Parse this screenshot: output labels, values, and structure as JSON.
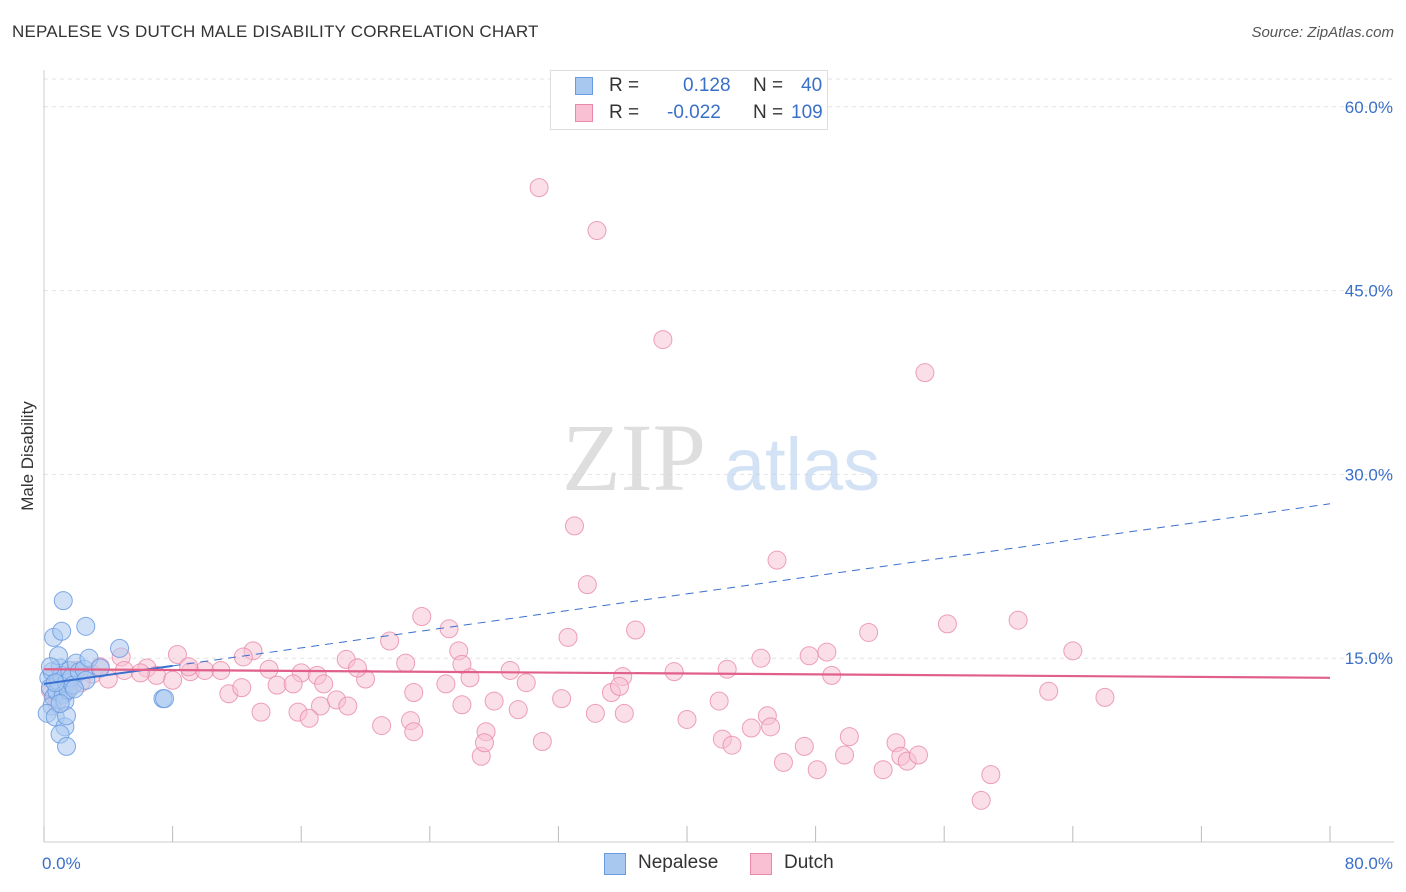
{
  "header": {
    "title": "NEPALESE VS DUTCH MALE DISABILITY CORRELATION CHART",
    "source": "Source: ZipAtlas.com"
  },
  "watermark": {
    "zip": "ZIP",
    "atlas": "atlas"
  },
  "legend": {
    "rows": [
      {
        "r_label": "R =",
        "r_value": "0.128",
        "n_label": "N =",
        "n_value": "40",
        "color": "#a9c8f0",
        "border": "#6a9be0"
      },
      {
        "r_label": "R =",
        "r_value": "-0.022",
        "n_label": "N =",
        "n_value": "109",
        "color": "#f8c0d2",
        "border": "#e889a8"
      }
    ]
  },
  "chart_data": {
    "type": "scatter",
    "title": "NEPALESE VS DUTCH MALE DISABILITY CORRELATION CHART",
    "xlabel": "",
    "ylabel": "Male Disability",
    "xlim": [
      0,
      80
    ],
    "ylim": [
      0,
      63
    ],
    "x_tick_labels": [
      "0.0%",
      "80.0%"
    ],
    "y_ticks": [
      15,
      30,
      45,
      60
    ],
    "y_tick_labels": [
      "15.0%",
      "30.0%",
      "45.0%",
      "60.0%"
    ],
    "grid": true,
    "colors": {
      "nepalese": "#6a9be0",
      "nepalese_fill": "#a9c8f0",
      "dutch": "#e889a8",
      "dutch_fill": "#f8c0d2",
      "nepalese_line": "#3a70d0",
      "dutch_line": "#e0608a",
      "tick_text": "#3a6fc8"
    },
    "series": [
      {
        "name": "Nepalese",
        "trend": {
          "x0": 0,
          "y0": 12.9,
          "x1": 80,
          "y1": 27.6,
          "solid_until": 8
        },
        "points": [
          [
            0.3,
            13.4
          ],
          [
            0.5,
            13.9
          ],
          [
            0.4,
            12.6
          ],
          [
            0.6,
            11.8
          ],
          [
            0.5,
            11.1
          ],
          [
            0.2,
            10.5
          ],
          [
            0.7,
            10.2
          ],
          [
            0.8,
            12.3
          ],
          [
            0.9,
            13.1
          ],
          [
            1.0,
            14.2
          ],
          [
            1.1,
            13.6
          ],
          [
            1.2,
            12.0
          ],
          [
            1.3,
            11.5
          ],
          [
            0.9,
            15.2
          ],
          [
            1.4,
            13.0
          ],
          [
            1.5,
            12.4
          ],
          [
            1.6,
            14.0
          ],
          [
            1.7,
            13.4
          ],
          [
            1.8,
            12.8
          ],
          [
            2.0,
            14.6
          ],
          [
            2.2,
            13.9
          ],
          [
            2.5,
            14.1
          ],
          [
            2.8,
            15.0
          ],
          [
            2.6,
            13.2
          ],
          [
            0.6,
            16.7
          ],
          [
            1.1,
            17.2
          ],
          [
            1.2,
            19.7
          ],
          [
            2.6,
            17.6
          ],
          [
            1.3,
            9.4
          ],
          [
            1.4,
            10.3
          ],
          [
            1.0,
            8.8
          ],
          [
            1.4,
            7.8
          ],
          [
            4.7,
            15.8
          ],
          [
            3.5,
            14.2
          ],
          [
            7.4,
            11.7
          ],
          [
            7.5,
            11.7
          ],
          [
            0.4,
            14.3
          ],
          [
            1.0,
            11.3
          ],
          [
            0.7,
            13.0
          ],
          [
            1.9,
            12.5
          ]
        ]
      },
      {
        "name": "Dutch",
        "trend": {
          "x0": 0,
          "y0": 14.1,
          "x1": 80,
          "y1": 13.4
        },
        "points": [
          [
            30.8,
            53.4
          ],
          [
            34.4,
            49.9
          ],
          [
            38.5,
            41.0
          ],
          [
            54.8,
            38.3
          ],
          [
            33.0,
            25.8
          ],
          [
            45.6,
            23.0
          ],
          [
            33.8,
            21.0
          ],
          [
            23.5,
            18.4
          ],
          [
            25.2,
            17.4
          ],
          [
            36.8,
            17.3
          ],
          [
            51.3,
            17.1
          ],
          [
            56.2,
            17.8
          ],
          [
            60.6,
            18.1
          ],
          [
            21.5,
            16.4
          ],
          [
            32.6,
            16.7
          ],
          [
            44.6,
            15.0
          ],
          [
            47.6,
            15.2
          ],
          [
            48.7,
            15.5
          ],
          [
            64.0,
            15.6
          ],
          [
            25.8,
            15.6
          ],
          [
            13.0,
            15.6
          ],
          [
            12.4,
            15.1
          ],
          [
            8.3,
            15.3
          ],
          [
            4.8,
            15.1
          ],
          [
            18.8,
            14.9
          ],
          [
            22.5,
            14.6
          ],
          [
            26.0,
            14.5
          ],
          [
            29.0,
            14.0
          ],
          [
            39.2,
            13.9
          ],
          [
            42.5,
            14.1
          ],
          [
            49.0,
            13.6
          ],
          [
            5.0,
            14.0
          ],
          [
            6.4,
            14.2
          ],
          [
            9.1,
            13.9
          ],
          [
            10.0,
            14.0
          ],
          [
            11.0,
            14.0
          ],
          [
            14.0,
            14.1
          ],
          [
            16.0,
            13.8
          ],
          [
            17.0,
            13.6
          ],
          [
            20.0,
            13.3
          ],
          [
            26.5,
            13.4
          ],
          [
            30.0,
            13.0
          ],
          [
            36.0,
            13.5
          ],
          [
            3.0,
            13.7
          ],
          [
            4.0,
            13.3
          ],
          [
            7.0,
            13.6
          ],
          [
            8.0,
            13.2
          ],
          [
            11.5,
            12.1
          ],
          [
            12.3,
            12.6
          ],
          [
            14.5,
            12.8
          ],
          [
            15.5,
            12.9
          ],
          [
            17.4,
            12.9
          ],
          [
            23.0,
            12.2
          ],
          [
            25.0,
            12.9
          ],
          [
            28.0,
            11.5
          ],
          [
            29.5,
            10.8
          ],
          [
            32.2,
            11.7
          ],
          [
            35.3,
            12.2
          ],
          [
            35.8,
            12.7
          ],
          [
            42.0,
            11.5
          ],
          [
            62.5,
            12.3
          ],
          [
            66.0,
            11.8
          ],
          [
            1.3,
            12.2
          ],
          [
            1.6,
            12.7
          ],
          [
            2.3,
            13.0
          ],
          [
            13.5,
            10.6
          ],
          [
            15.8,
            10.6
          ],
          [
            17.2,
            11.1
          ],
          [
            16.5,
            10.1
          ],
          [
            18.2,
            11.6
          ],
          [
            18.9,
            11.1
          ],
          [
            21.0,
            9.5
          ],
          [
            22.8,
            9.9
          ],
          [
            23.0,
            9.0
          ],
          [
            26.0,
            11.2
          ],
          [
            27.5,
            9.0
          ],
          [
            34.3,
            10.5
          ],
          [
            36.1,
            10.5
          ],
          [
            40.0,
            10.0
          ],
          [
            42.2,
            8.4
          ],
          [
            42.8,
            7.9
          ],
          [
            44.0,
            9.3
          ],
          [
            45.0,
            10.3
          ],
          [
            45.2,
            9.4
          ],
          [
            46.0,
            6.5
          ],
          [
            47.3,
            7.8
          ],
          [
            48.1,
            5.9
          ],
          [
            49.8,
            7.1
          ],
          [
            50.1,
            8.6
          ],
          [
            52.2,
            5.9
          ],
          [
            53.0,
            8.1
          ],
          [
            53.3,
            7.0
          ],
          [
            53.7,
            6.6
          ],
          [
            54.4,
            7.1
          ],
          [
            58.9,
            5.5
          ],
          [
            58.3,
            3.4
          ],
          [
            27.2,
            7.0
          ],
          [
            27.4,
            8.1
          ],
          [
            31.0,
            8.2
          ],
          [
            0.6,
            11.8
          ],
          [
            0.8,
            11.3
          ],
          [
            1.0,
            12.8
          ],
          [
            1.5,
            13.5
          ],
          [
            2.0,
            14.0
          ],
          [
            0.4,
            12.4
          ],
          [
            3.5,
            14.3
          ],
          [
            9.0,
            14.3
          ],
          [
            6.0,
            13.8
          ],
          [
            19.5,
            14.2
          ]
        ]
      }
    ]
  },
  "bottom_legend": [
    {
      "label": "Nepalese"
    },
    {
      "label": "Dutch"
    }
  ]
}
